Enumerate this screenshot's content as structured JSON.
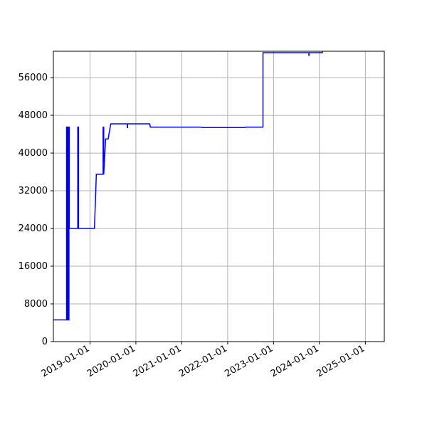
{
  "chart_data": {
    "type": "line",
    "title": "",
    "xlabel": "",
    "ylabel": "",
    "grid": true,
    "line_color": "#0000ff",
    "grid_color": "#b0b0b0",
    "xlim": [
      "2018-03-15",
      "2025-06-01"
    ],
    "ylim": [
      0,
      61600
    ],
    "y_ticks": [
      0,
      8000,
      16000,
      24000,
      32000,
      40000,
      48000,
      56000
    ],
    "y_tick_labels": [
      "0",
      "8000",
      "16000",
      "24000",
      "32000",
      "40000",
      "48000",
      "56000"
    ],
    "x_ticks": [
      "2019-01-01",
      "2020-01-01",
      "2021-01-01",
      "2022-01-01",
      "2023-01-01",
      "2024-01-01",
      "2025-01-01"
    ],
    "x_tick_labels": [
      "2019-01-01",
      "2020-01-01",
      "2021-01-01",
      "2022-01-01",
      "2023-01-01",
      "2024-01-01",
      "2025-01-01"
    ],
    "series": [
      {
        "x": [
          "2018-03-15",
          "2018-06-28",
          "2018-06-28",
          "2018-07-03",
          "2018-07-03",
          "2018-07-05",
          "2018-07-05",
          "2018-07-08",
          "2018-07-08",
          "2018-07-11",
          "2018-07-11",
          "2018-07-14",
          "2018-07-14",
          "2018-07-17",
          "2018-07-17",
          "2018-07-20",
          "2018-07-20",
          "2018-07-23",
          "2018-07-23",
          "2018-09-25",
          "2018-09-25",
          "2018-10-01",
          "2018-10-01",
          "2019-02-05",
          "2019-02-20",
          "2019-04-15",
          "2019-04-15",
          "2019-04-20",
          "2019-04-20",
          "2019-05-05",
          "2019-05-25",
          "2019-06-15",
          "2019-10-25",
          "2019-10-25",
          "2019-10-27",
          "2019-10-27",
          "2020-04-20",
          "2020-04-25",
          "2021-06-01",
          "2021-06-15",
          "2022-05-15",
          "2022-05-25",
          "2022-10-09",
          "2022-10-09",
          "2023-10-09",
          "2023-10-10",
          "2023-10-10",
          "2023-10-15",
          "2024-01-25",
          "2024-01-25"
        ],
        "y": [
          4600,
          4600,
          45500,
          45500,
          4600,
          4600,
          45500,
          45500,
          4600,
          4600,
          45500,
          45500,
          4600,
          4600,
          45500,
          45500,
          24000,
          24000,
          24000,
          24000,
          45500,
          45500,
          24000,
          24000,
          35500,
          35500,
          45500,
          45500,
          35500,
          43000,
          43000,
          46200,
          46200,
          45400,
          45400,
          46200,
          46200,
          45500,
          45500,
          45400,
          45400,
          45500,
          45500,
          61300,
          61300,
          60600,
          61300,
          61300,
          61300,
          61600
        ]
      }
    ]
  }
}
